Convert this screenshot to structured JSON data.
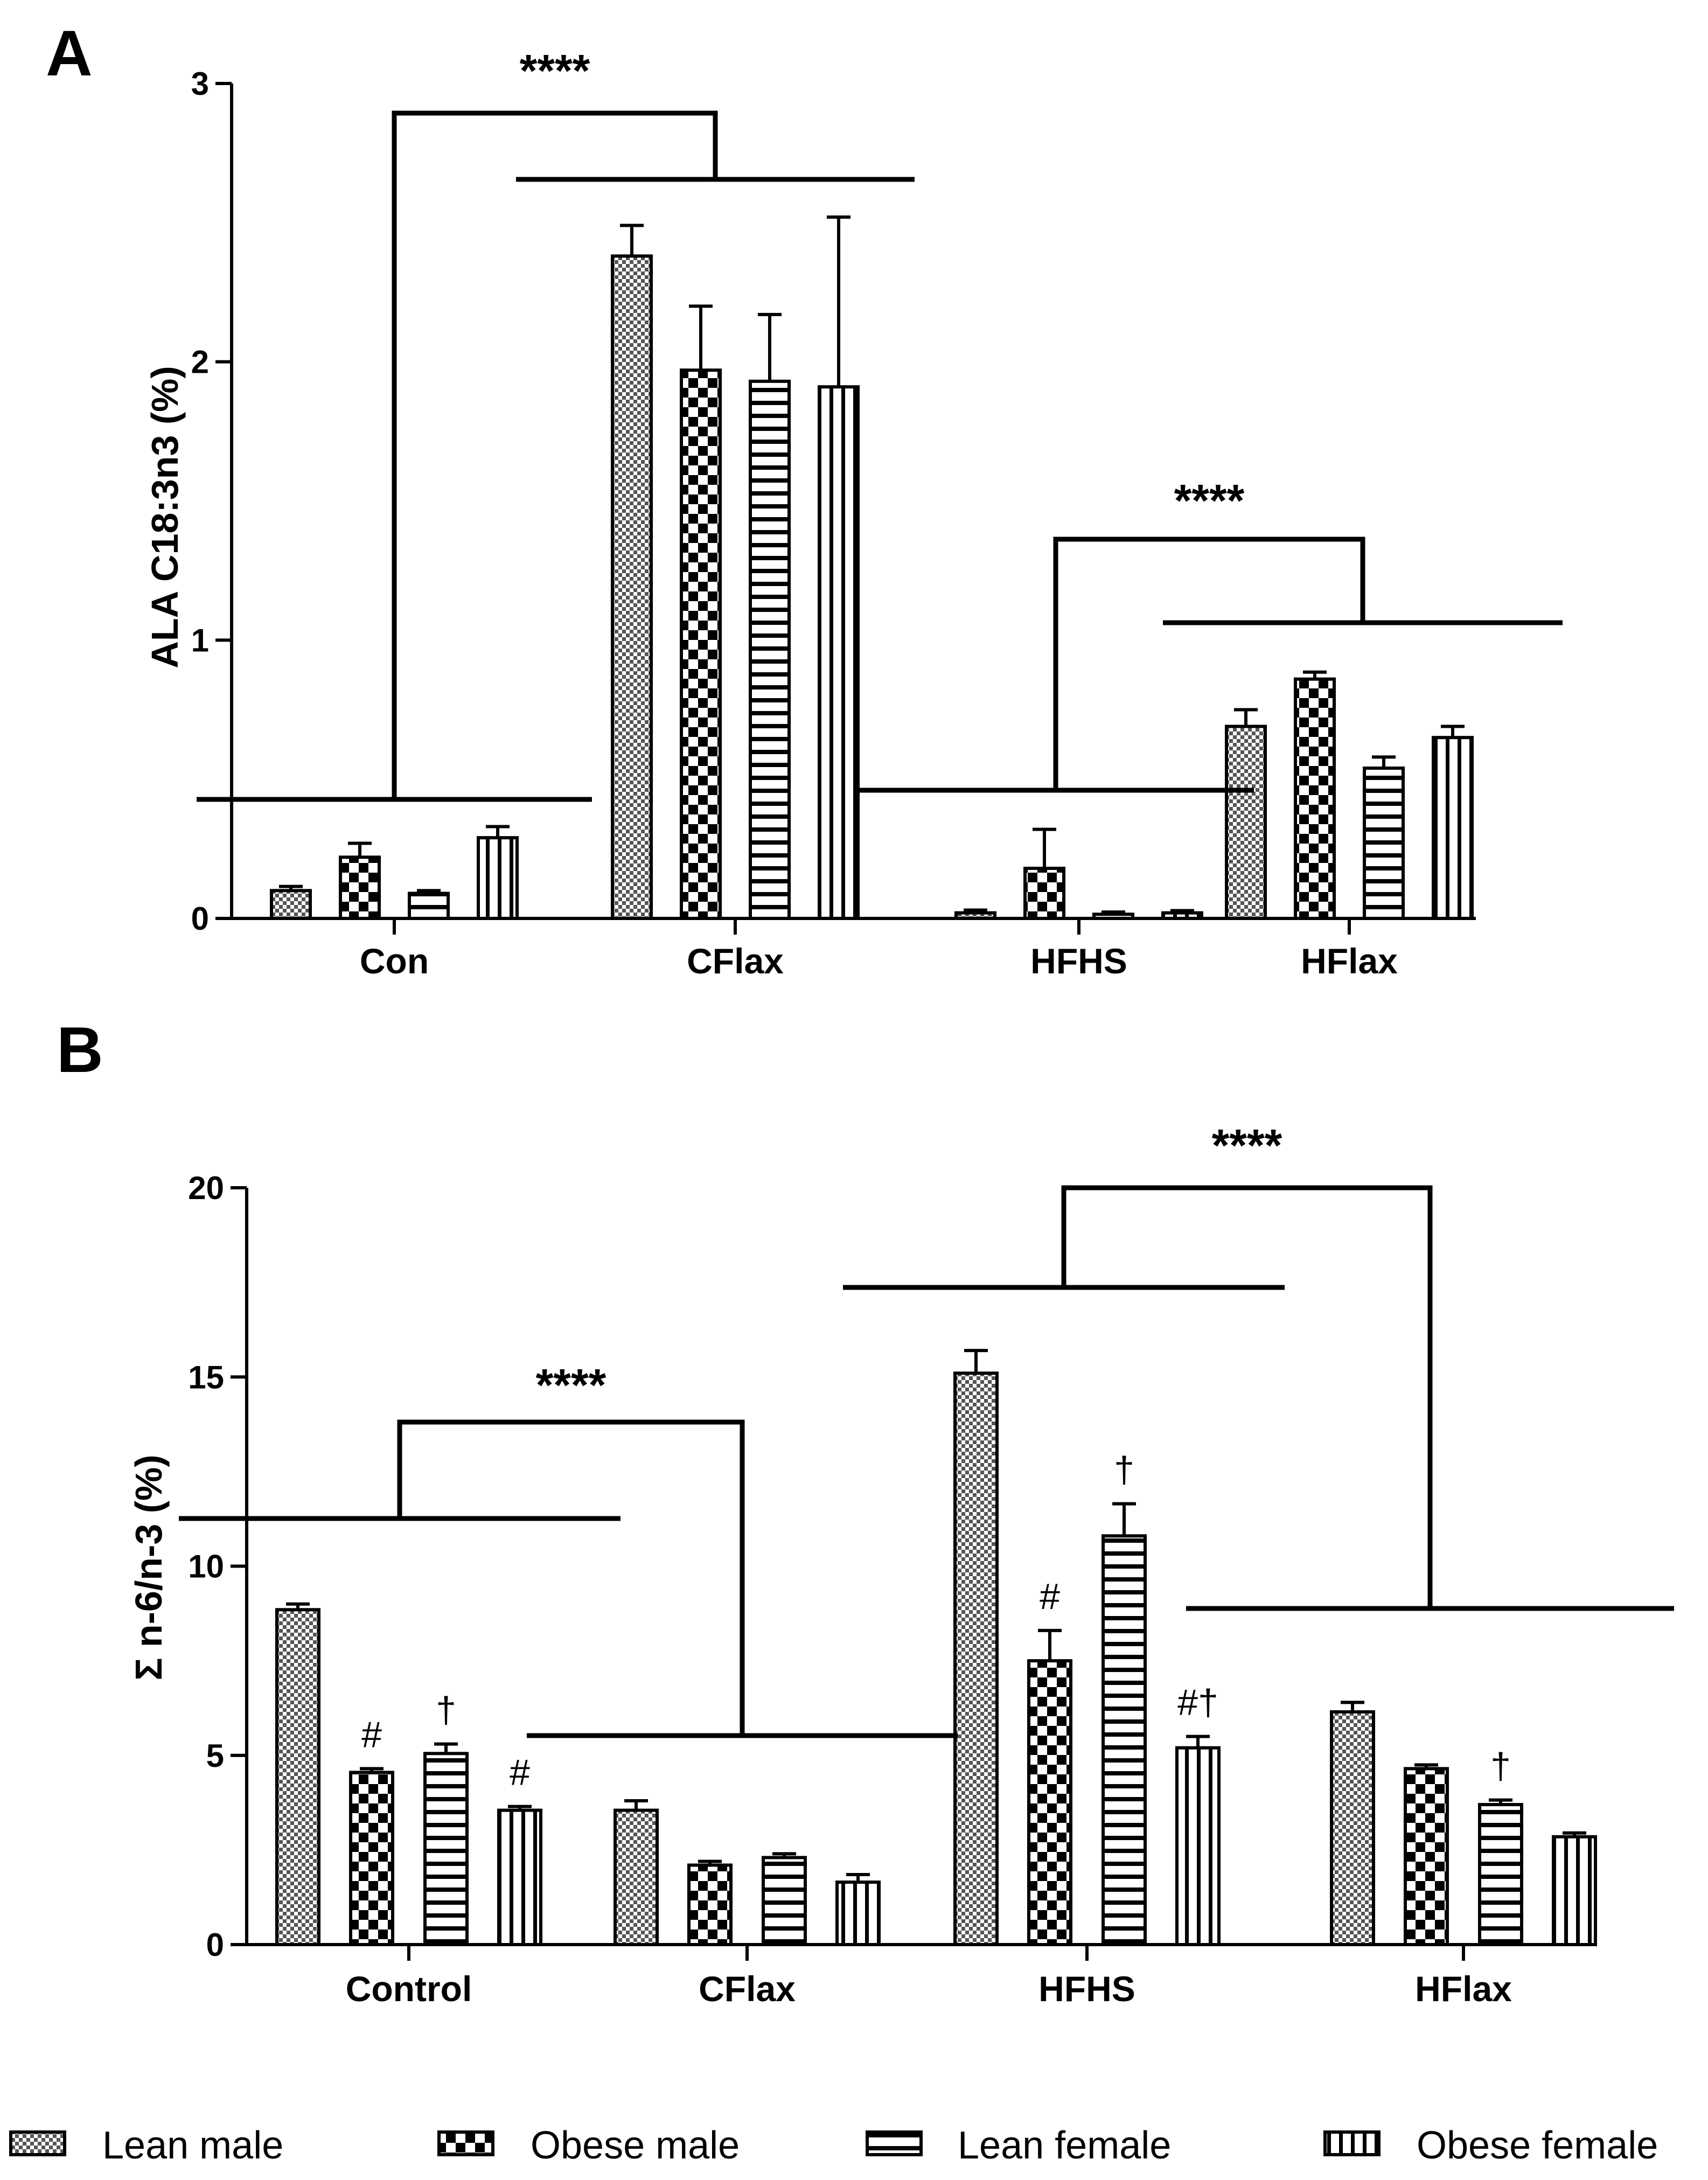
{
  "legend": [
    "Lean male",
    "Obese male",
    "Lean female",
    "Obese female"
  ],
  "chart_data": [
    {
      "panel": "A",
      "type": "bar",
      "ylabel": "ALA C18:3n3 (%)",
      "ylim": [
        0,
        3
      ],
      "yticks": [
        "0",
        "1",
        "2",
        "3"
      ],
      "categories": [
        "Con",
        "CFlax",
        "HFHS",
        "HFlax"
      ],
      "series": [
        {
          "name": "Lean male",
          "values": [
            0.1,
            2.38,
            0.02,
            0.69
          ],
          "errors": [
            0.015,
            0.11,
            0.01,
            0.06
          ]
        },
        {
          "name": "Obese male",
          "values": [
            0.22,
            1.97,
            0.18,
            0.86
          ],
          "errors": [
            0.05,
            0.23,
            0.14,
            0.025
          ]
        },
        {
          "name": "Lean female",
          "values": [
            0.09,
            1.93,
            0.015,
            0.54
          ],
          "errors": [
            0.01,
            0.24,
            0.008,
            0.04
          ]
        },
        {
          "name": "Obese female",
          "values": [
            0.29,
            1.91,
            0.02,
            0.65
          ],
          "errors": [
            0.04,
            0.61,
            0.008,
            0.04
          ]
        }
      ],
      "brackets": [
        {
          "left_group": "Con",
          "right_group": "CFlax",
          "label": "****"
        },
        {
          "left_group": "HFHS",
          "right_group": "HFlax",
          "label": "****"
        }
      ],
      "annotations": []
    },
    {
      "panel": "B",
      "type": "bar",
      "ylabel": "Σ n-6/n-3 (%)",
      "ylim": [
        0,
        20
      ],
      "yticks": [
        "0",
        "5",
        "10",
        "15",
        "20"
      ],
      "categories": [
        "Control",
        "CFlax",
        "HFHS",
        "HFlax"
      ],
      "series": [
        {
          "name": "Lean male",
          "values": [
            8.85,
            3.55,
            15.1,
            6.15
          ],
          "errors": [
            0.15,
            0.25,
            0.6,
            0.25
          ]
        },
        {
          "name": "Obese male",
          "values": [
            4.55,
            2.1,
            7.5,
            4.65
          ],
          "errors": [
            0.1,
            0.1,
            0.8,
            0.1
          ]
        },
        {
          "name": "Lean female",
          "values": [
            5.05,
            2.3,
            10.8,
            3.7
          ],
          "errors": [
            0.25,
            0.1,
            0.85,
            0.12
          ]
        },
        {
          "name": "Obese female",
          "values": [
            3.55,
            1.65,
            5.2,
            2.85
          ],
          "errors": [
            0.1,
            0.2,
            0.3,
            0.1
          ]
        }
      ],
      "brackets": [
        {
          "left_group": "Control",
          "right_group": "CFlax",
          "label": "****"
        },
        {
          "left_group": "HFHS",
          "right_group": "HFlax",
          "label": "****"
        }
      ],
      "annotations": [
        {
          "group": 0,
          "series": 1,
          "text": "#"
        },
        {
          "group": 0,
          "series": 2,
          "text": "†"
        },
        {
          "group": 0,
          "series": 3,
          "text": "#"
        },
        {
          "group": 2,
          "series": 1,
          "text": "#"
        },
        {
          "group": 2,
          "series": 2,
          "text": "†"
        },
        {
          "group": 2,
          "series": 3,
          "text": "#†"
        },
        {
          "group": 3,
          "series": 2,
          "text": "†"
        }
      ]
    }
  ]
}
